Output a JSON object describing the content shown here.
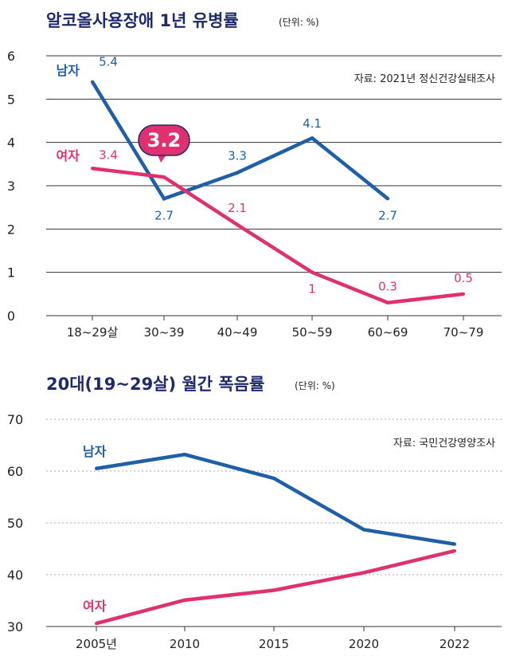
{
  "colors": {
    "male": "#1f5fa8",
    "female": "#e0306f",
    "title": "#1f2a6b"
  },
  "chart_data": [
    {
      "type": "line",
      "title": "알코올사용장애 1년 유병률",
      "unit": "(단위: %)",
      "source": "자료: 2021년 정신건강실태조사",
      "categories": [
        "18~29살",
        "30~39",
        "40~49",
        "50~59",
        "60~69",
        "70~79"
      ],
      "yticks": [
        0,
        1,
        2,
        3,
        4,
        5,
        6
      ],
      "ylim": [
        0,
        6
      ],
      "highlight": "3.2",
      "series": [
        {
          "name": "남자",
          "values": [
            5.4,
            2.7,
            3.3,
            4.1,
            2.7,
            null
          ],
          "labels": [
            "5.4",
            "2.7",
            "3.3",
            "4.1",
            "2.7",
            ""
          ]
        },
        {
          "name": "여자",
          "values": [
            3.4,
            3.2,
            2.1,
            1.0,
            0.3,
            0.5
          ],
          "labels": [
            "3.4",
            "",
            "2.1",
            "1",
            "0.3",
            "0.5"
          ]
        }
      ]
    },
    {
      "type": "line",
      "title": "20대(19~29살) 월간 폭음률",
      "unit": "(단위: %)",
      "source": "자료: 국민건강영양조사",
      "categories": [
        "2005년",
        "2010",
        "2015",
        "2020",
        "2022"
      ],
      "yticks": [
        30,
        40,
        50,
        60,
        70
      ],
      "ylim": [
        30,
        70
      ],
      "series": [
        {
          "name": "남자",
          "values": [
            60.5,
            63.2,
            58.6,
            48.7,
            45.9
          ]
        },
        {
          "name": "여자",
          "values": [
            30.6,
            35.1,
            37.0,
            40.4,
            44.6
          ]
        }
      ]
    }
  ]
}
